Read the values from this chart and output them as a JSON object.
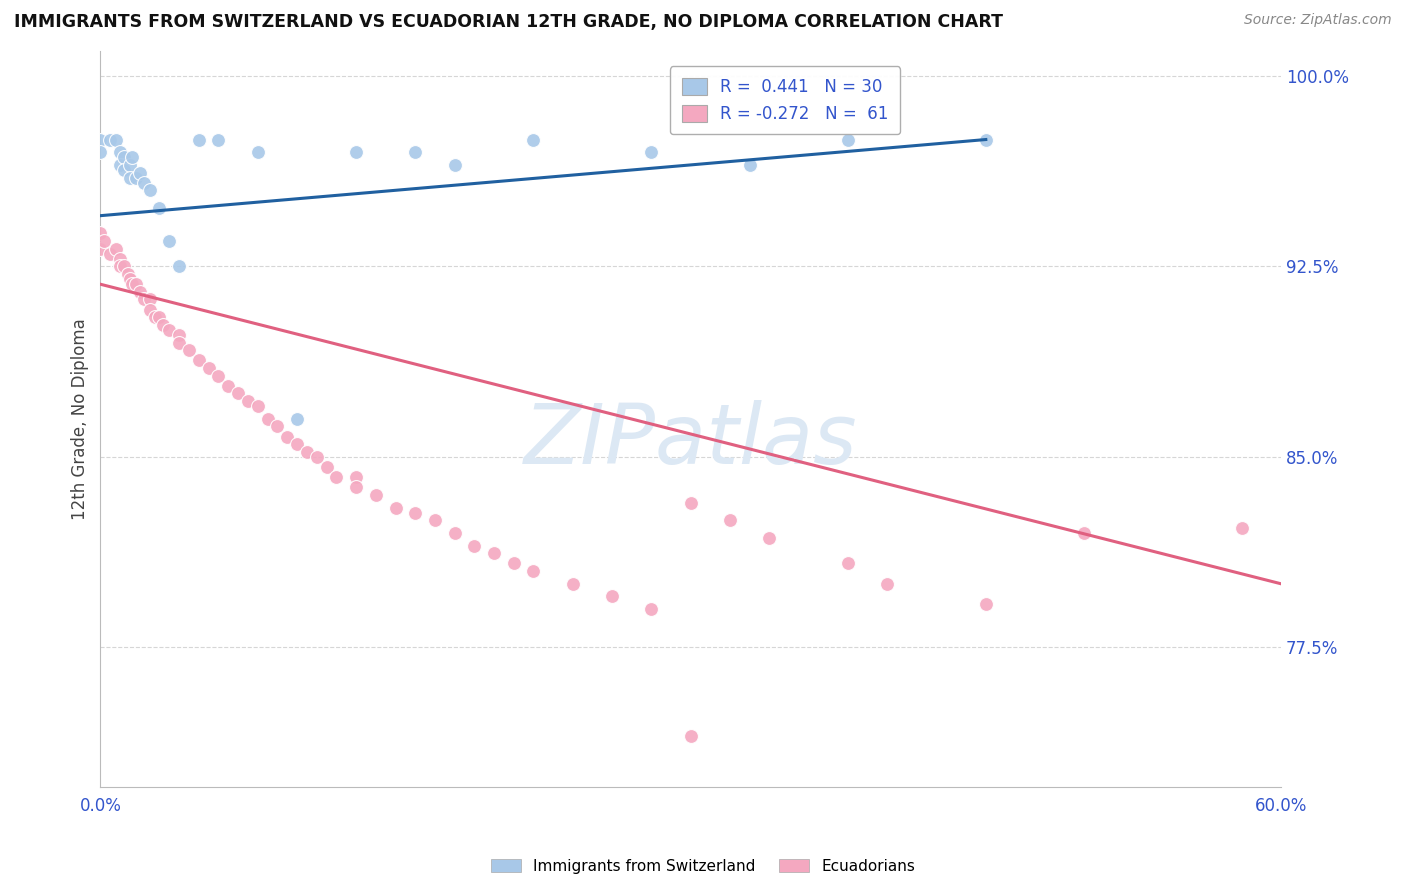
{
  "title": "IMMIGRANTS FROM SWITZERLAND VS ECUADORIAN 12TH GRADE, NO DIPLOMA CORRELATION CHART",
  "source": "Source: ZipAtlas.com",
  "y_axis_label": "12th Grade, No Diploma",
  "x_min": 0.0,
  "x_max": 0.6,
  "y_min": 0.72,
  "y_max": 1.01,
  "x_tick_positions": [
    0.0,
    0.6
  ],
  "x_tick_labels": [
    "0.0%",
    "60.0%"
  ],
  "y_tick_positions": [
    0.775,
    0.85,
    0.925,
    1.0
  ],
  "y_tick_labels": [
    "77.5%",
    "85.0%",
    "92.5%",
    "100.0%"
  ],
  "swiss_color": "#a8c8e8",
  "ecuador_color": "#f4a8c0",
  "swiss_R": 0.441,
  "swiss_N": 30,
  "ecuador_R": -0.272,
  "ecuador_N": 61,
  "swiss_line_color": "#2060a0",
  "ecuador_line_color": "#e06080",
  "legend_color_swiss": "#a8c8e8",
  "legend_color_ecuador": "#f4a8c0",
  "swiss_scatter_x": [
    0.0,
    0.0,
    0.005,
    0.008,
    0.01,
    0.01,
    0.012,
    0.012,
    0.015,
    0.015,
    0.016,
    0.018,
    0.02,
    0.022,
    0.025,
    0.03,
    0.035,
    0.04,
    0.05,
    0.06,
    0.08,
    0.1,
    0.13,
    0.16,
    0.18,
    0.22,
    0.28,
    0.33,
    0.38,
    0.45
  ],
  "swiss_scatter_y": [
    0.975,
    0.97,
    0.975,
    0.975,
    0.97,
    0.965,
    0.968,
    0.963,
    0.965,
    0.96,
    0.968,
    0.96,
    0.962,
    0.958,
    0.955,
    0.948,
    0.935,
    0.925,
    0.975,
    0.975,
    0.97,
    0.865,
    0.97,
    0.97,
    0.965,
    0.975,
    0.97,
    0.965,
    0.975,
    0.975
  ],
  "ecuador_scatter_x": [
    0.0,
    0.0,
    0.002,
    0.005,
    0.008,
    0.01,
    0.01,
    0.012,
    0.014,
    0.015,
    0.016,
    0.018,
    0.02,
    0.022,
    0.025,
    0.025,
    0.028,
    0.03,
    0.032,
    0.035,
    0.04,
    0.04,
    0.045,
    0.05,
    0.055,
    0.06,
    0.065,
    0.07,
    0.075,
    0.08,
    0.085,
    0.09,
    0.095,
    0.1,
    0.105,
    0.11,
    0.115,
    0.12,
    0.13,
    0.13,
    0.14,
    0.15,
    0.16,
    0.17,
    0.18,
    0.19,
    0.2,
    0.21,
    0.22,
    0.24,
    0.26,
    0.28,
    0.3,
    0.32,
    0.34,
    0.38,
    0.4,
    0.45,
    0.5,
    0.58,
    0.3
  ],
  "ecuador_scatter_y": [
    0.938,
    0.932,
    0.935,
    0.93,
    0.932,
    0.928,
    0.925,
    0.925,
    0.922,
    0.92,
    0.918,
    0.918,
    0.915,
    0.912,
    0.912,
    0.908,
    0.905,
    0.905,
    0.902,
    0.9,
    0.898,
    0.895,
    0.892,
    0.888,
    0.885,
    0.882,
    0.878,
    0.875,
    0.872,
    0.87,
    0.865,
    0.862,
    0.858,
    0.855,
    0.852,
    0.85,
    0.846,
    0.842,
    0.842,
    0.838,
    0.835,
    0.83,
    0.828,
    0.825,
    0.82,
    0.815,
    0.812,
    0.808,
    0.805,
    0.8,
    0.795,
    0.79,
    0.832,
    0.825,
    0.818,
    0.808,
    0.8,
    0.792,
    0.82,
    0.822,
    0.74
  ],
  "swiss_line_x": [
    0.0,
    0.45
  ],
  "swiss_line_y": [
    0.945,
    0.975
  ],
  "ecuador_line_x": [
    0.0,
    0.6
  ],
  "ecuador_line_y": [
    0.918,
    0.8
  ],
  "background_color": "#ffffff",
  "grid_color": "#cccccc",
  "title_color": "#111111",
  "axis_label_color": "#444444",
  "tick_label_color": "#3355cc",
  "watermark_color": "#dce8f4"
}
